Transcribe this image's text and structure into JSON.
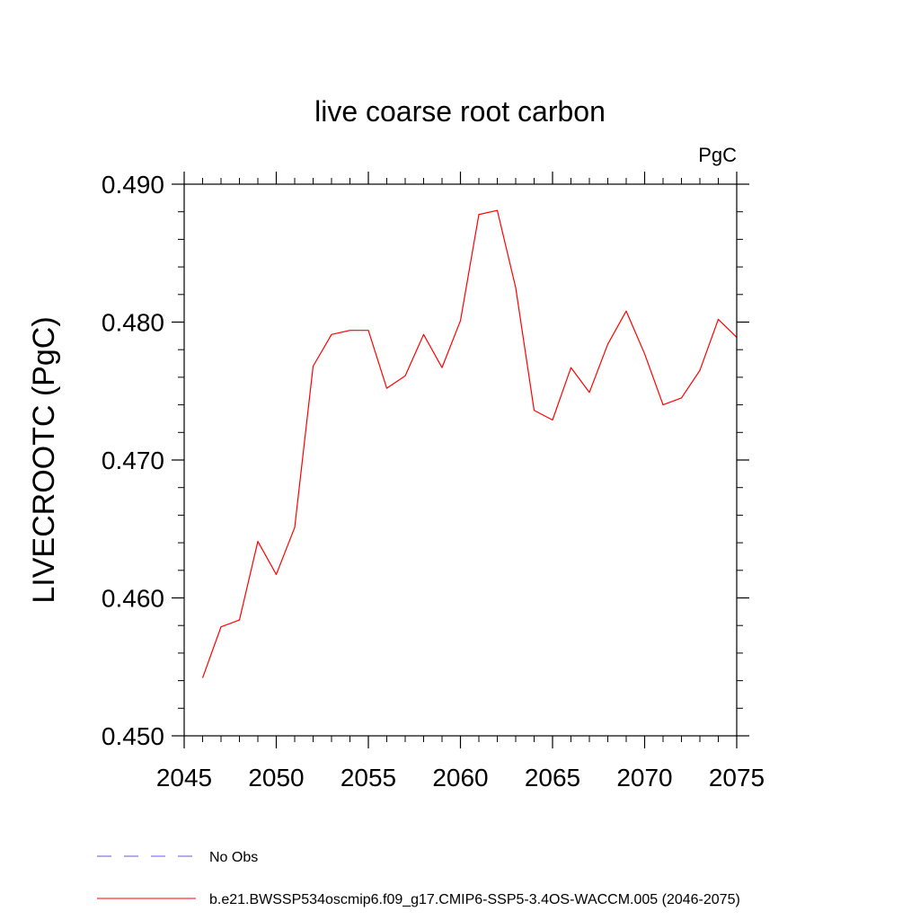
{
  "chart_data": {
    "type": "line",
    "title": "live coarse root carbon",
    "units_label": "PgC",
    "ylabel": "LIVECROOTC  (PgC)",
    "xlabel": "",
    "xlim": [
      2045,
      2075
    ],
    "ylim": [
      0.45,
      0.49
    ],
    "xticks": [
      2045,
      2050,
      2055,
      2060,
      2065,
      2070,
      2075
    ],
    "yticks": [
      0.45,
      0.46,
      0.47,
      0.48,
      0.49
    ],
    "ytick_labels": [
      "0.450",
      "0.460",
      "0.470",
      "0.480",
      "0.490"
    ],
    "x_minor_step": 1,
    "y_minor_step": 0.002,
    "series": [
      {
        "name": "b.e21.BWSSP534oscmip6.f09_g17.CMIP6-SSP5-3.4OS-WACCM.005 (2046-2075)",
        "color": "#ff0000",
        "style": "solid",
        "x": [
          2046,
          2047,
          2048,
          2049,
          2050,
          2051,
          2052,
          2053,
          2054,
          2055,
          2056,
          2057,
          2058,
          2059,
          2060,
          2061,
          2062,
          2063,
          2064,
          2065,
          2066,
          2067,
          2068,
          2069,
          2070,
          2071,
          2072,
          2073,
          2074,
          2075
        ],
        "values": [
          0.4542,
          0.4579,
          0.4584,
          0.4641,
          0.4617,
          0.4651,
          0.4768,
          0.4791,
          0.4794,
          0.4794,
          0.4752,
          0.4761,
          0.4791,
          0.4767,
          0.4801,
          0.4878,
          0.4881,
          0.4825,
          0.4736,
          0.4729,
          0.4767,
          0.4749,
          0.4784,
          0.4808,
          0.4777,
          0.474,
          0.4745,
          0.4765,
          0.4802,
          0.4789
        ]
      }
    ],
    "legend": [
      {
        "label": "No Obs",
        "color": "#6a5acd",
        "style": "dashed"
      },
      {
        "label": "b.e21.BWSSP534oscmip6.f09_g17.CMIP6-SSP5-3.4OS-WACCM.005 (2046-2075)",
        "color": "#ff0000",
        "style": "solid"
      }
    ],
    "legend_position": "bottom-left"
  }
}
